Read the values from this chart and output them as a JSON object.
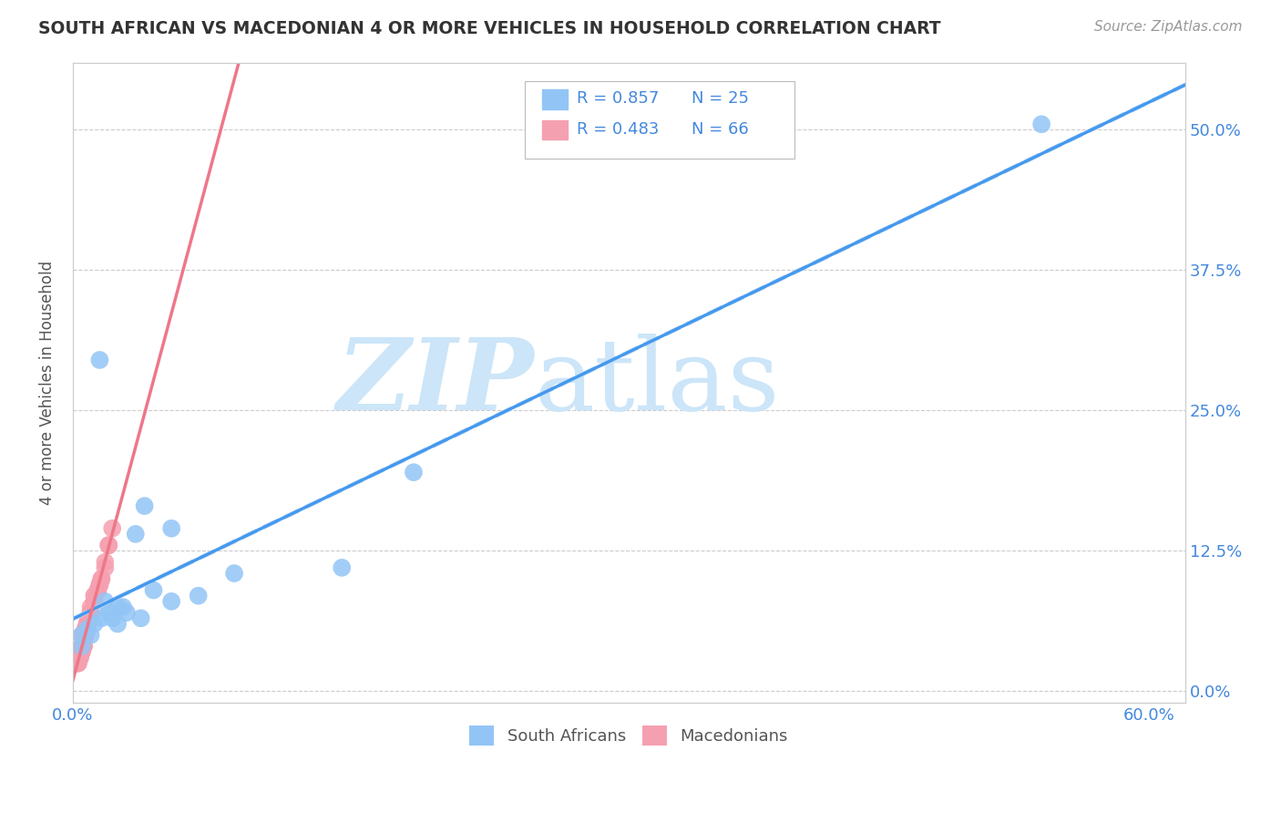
{
  "title": "SOUTH AFRICAN VS MACEDONIAN 4 OR MORE VEHICLES IN HOUSEHOLD CORRELATION CHART",
  "source": "Source: ZipAtlas.com",
  "ylabel": "4 or more Vehicles in Household",
  "xlabel_ticks_pos": [
    0.0,
    0.6
  ],
  "xlabel_ticks_labels": [
    "0.0%",
    "60.0%"
  ],
  "ylabel_ticks_pos": [
    0.0,
    0.125,
    0.25,
    0.375,
    0.5
  ],
  "ylabel_ticks_labels": [
    "0.0%",
    "12.5%",
    "25.0%",
    "37.5%",
    "50.0%"
  ],
  "xlim": [
    0.0,
    0.62
  ],
  "ylim": [
    -0.01,
    0.56
  ],
  "grid_color": "#cccccc",
  "background_color": "#ffffff",
  "watermark_zip": "ZIP",
  "watermark_atlas": "atlas",
  "watermark_color": "#cce5f8",
  "legend_labels": [
    "South Africans",
    "Macedonians"
  ],
  "legend_r": [
    "R = 0.857",
    "R = 0.483"
  ],
  "legend_n": [
    "N = 25",
    "N = 66"
  ],
  "sa_color": "#92c5f5",
  "mac_color": "#f5a0b0",
  "sa_line_color": "#4499ee",
  "mac_line_color": "#ee7788",
  "sa_line_dashed_color": "#c8ddf5",
  "title_color": "#333333",
  "axis_label_color": "#4488dd",
  "south_african_x": [
    0.54,
    0.015,
    0.04,
    0.055,
    0.025,
    0.018,
    0.022,
    0.045,
    0.03,
    0.02,
    0.012,
    0.008,
    0.005,
    0.01,
    0.035,
    0.19,
    0.15,
    0.07,
    0.055,
    0.09,
    0.028,
    0.016,
    0.005,
    0.038,
    0.025
  ],
  "south_african_y": [
    0.505,
    0.295,
    0.165,
    0.145,
    0.075,
    0.08,
    0.065,
    0.09,
    0.07,
    0.07,
    0.06,
    0.055,
    0.05,
    0.05,
    0.14,
    0.195,
    0.11,
    0.085,
    0.08,
    0.105,
    0.075,
    0.065,
    0.04,
    0.065,
    0.06
  ],
  "macedonian_x": [
    0.005,
    0.003,
    0.008,
    0.012,
    0.006,
    0.004,
    0.007,
    0.009,
    0.003,
    0.005,
    0.01,
    0.008,
    0.006,
    0.004,
    0.014,
    0.018,
    0.012,
    0.009,
    0.006,
    0.003,
    0.016,
    0.02,
    0.005,
    0.007,
    0.01,
    0.004,
    0.006,
    0.008,
    0.003,
    0.01,
    0.015,
    0.012,
    0.007,
    0.005,
    0.009,
    0.004,
    0.006,
    0.008,
    0.003,
    0.012,
    0.02,
    0.016,
    0.01,
    0.007,
    0.005,
    0.022,
    0.018,
    0.014,
    0.009,
    0.006,
    0.004,
    0.007,
    0.01,
    0.005,
    0.008,
    0.003,
    0.006,
    0.012,
    0.009,
    0.004,
    0.015,
    0.008,
    0.006,
    0.005,
    0.01,
    0.007
  ],
  "macedonian_y": [
    0.05,
    0.03,
    0.06,
    0.08,
    0.04,
    0.035,
    0.055,
    0.065,
    0.03,
    0.04,
    0.07,
    0.06,
    0.045,
    0.035,
    0.09,
    0.11,
    0.08,
    0.065,
    0.04,
    0.03,
    0.1,
    0.13,
    0.04,
    0.055,
    0.07,
    0.03,
    0.04,
    0.06,
    0.025,
    0.075,
    0.095,
    0.08,
    0.05,
    0.035,
    0.065,
    0.03,
    0.045,
    0.055,
    0.025,
    0.085,
    0.13,
    0.1,
    0.07,
    0.05,
    0.04,
    0.145,
    0.115,
    0.09,
    0.065,
    0.045,
    0.03,
    0.055,
    0.07,
    0.035,
    0.06,
    0.025,
    0.04,
    0.085,
    0.065,
    0.03,
    0.095,
    0.055,
    0.04,
    0.035,
    0.07,
    0.05
  ]
}
